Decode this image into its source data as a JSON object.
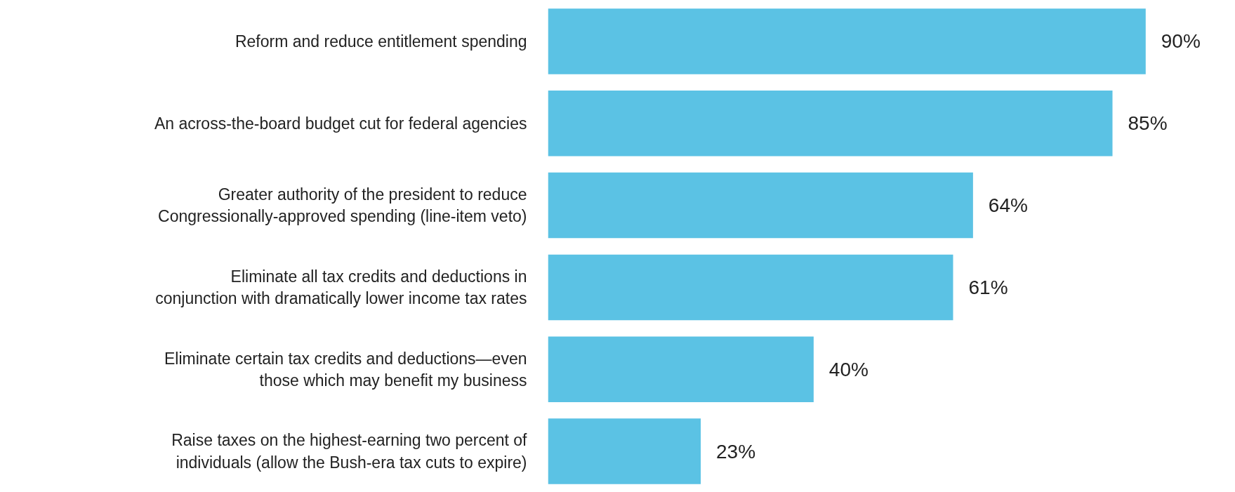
{
  "chart_data": {
    "type": "bar",
    "orientation": "horizontal",
    "categories": [
      "Reform and reduce entitlement spending",
      "An across-the-board budget cut for federal agencies",
      "Greater authority of the president to reduce Congressionally-approved spending (line-item veto)",
      "Eliminate all tax credits and deductions in conjunction with dramatically lower income tax rates",
      "Eliminate certain tax credits and deductions—even those which may benefit my business",
      "Raise taxes on the highest-earning two percent of individuals (allow the Bush-era tax cuts to expire)"
    ],
    "values": [
      90,
      85,
      64,
      61,
      40,
      23
    ],
    "value_labels": [
      "90%",
      "85%",
      "64%",
      "61%",
      "40%",
      "23%"
    ],
    "color": "#5bc2e4",
    "grid": false,
    "tick_labels": "y"
  }
}
